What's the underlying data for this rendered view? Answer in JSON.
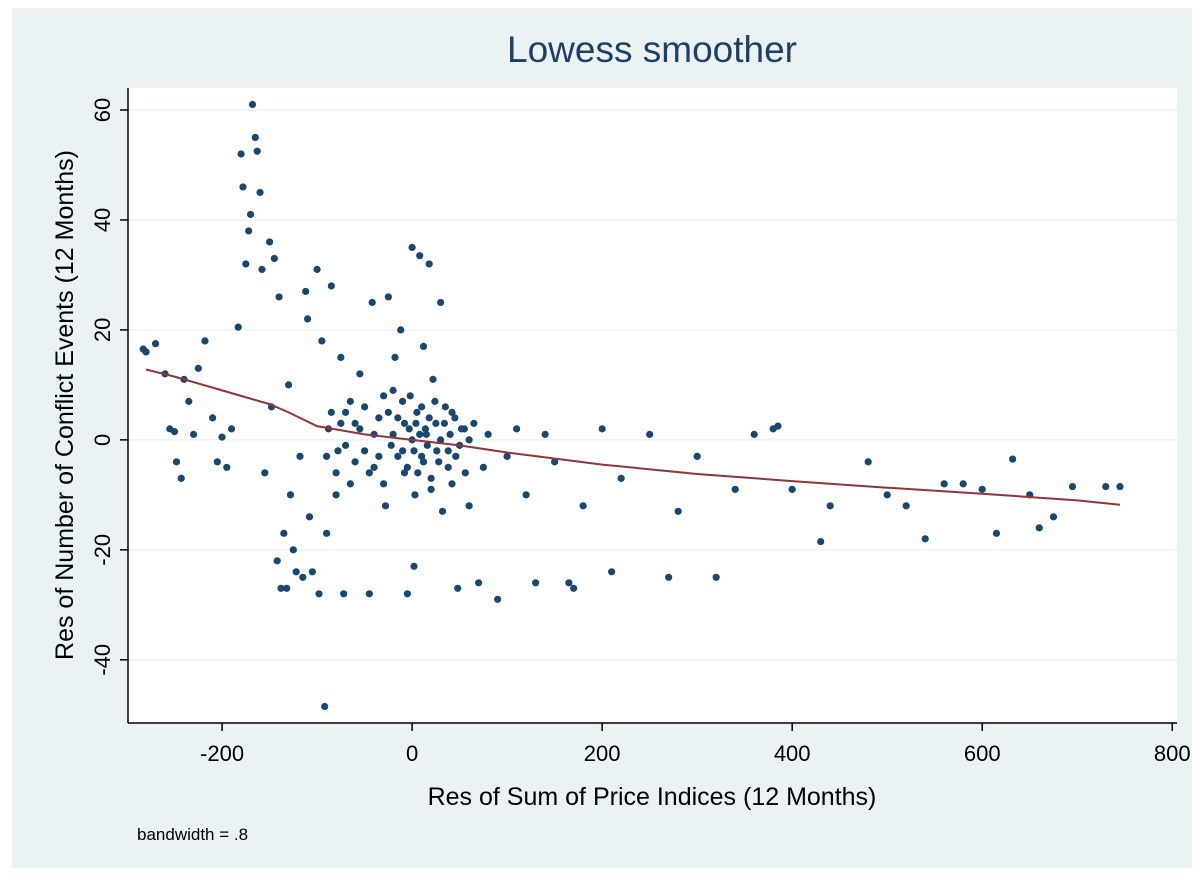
{
  "chart_data": {
    "type": "scatter",
    "title": "Lowess smoother",
    "x_label": "Res of Sum of Price Indices (12 Months)",
    "y_label": "Res of Number of Conflict Events (12 Months)",
    "note": "bandwidth = .8",
    "xlim": [
      -299,
      805
    ],
    "ylim": [
      -51.5,
      64
    ],
    "xticks": [
      -200,
      0,
      200,
      400,
      600,
      800
    ],
    "yticks": [
      -40,
      -20,
      0,
      20,
      40,
      60
    ],
    "grid": true,
    "series": [
      {
        "color": "#1a476f",
        "kind": "points",
        "x": [
          -283,
          -280,
          -270,
          -260,
          -255,
          -250,
          -248,
          -243,
          -240,
          -235,
          -230,
          -225,
          -218,
          -210,
          -205,
          -200,
          -195,
          -190,
          -183,
          -180,
          -178,
          -175,
          -172,
          -170,
          -168,
          -165,
          -163,
          -160,
          -158,
          -155,
          -150,
          -148,
          -145,
          -142,
          -140,
          -138,
          -135,
          -132,
          -130,
          -128,
          -125,
          -122,
          -118,
          -115,
          -112,
          -110,
          -108,
          -105,
          -100,
          -98,
          -95,
          -92,
          -90,
          -88,
          -85,
          -80,
          -78,
          -75,
          -72,
          -70,
          -65,
          -60,
          -55,
          -50,
          -45,
          -42,
          -40,
          -35,
          -30,
          -28,
          -25,
          -20,
          -18,
          -15,
          -12,
          -10,
          -8,
          -5,
          -3,
          0,
          2,
          3,
          5,
          8,
          10,
          12,
          15,
          18,
          20,
          22,
          25,
          28,
          30,
          32,
          35,
          38,
          40,
          42,
          45,
          48,
          50,
          55,
          60,
          65,
          70,
          75,
          80,
          90,
          100,
          110,
          120,
          130,
          140,
          150,
          165,
          170,
          180,
          200,
          210,
          220,
          250,
          270,
          280,
          300,
          320,
          340,
          360,
          380,
          385,
          400,
          430,
          440,
          480,
          500,
          520,
          540,
          560,
          580,
          600,
          615,
          632,
          650,
          660,
          675,
          695,
          730,
          745,
          -90,
          -85,
          -80,
          -75,
          -70,
          -65,
          -60,
          -55,
          -50,
          -45,
          -40,
          -35,
          -30,
          -25,
          -22,
          -20,
          -15,
          -10,
          -8,
          -5,
          -2,
          0,
          2,
          4,
          6,
          8,
          10,
          12,
          14,
          16,
          18,
          20,
          24,
          26,
          30,
          34,
          38,
          42,
          46,
          52,
          56,
          60
        ],
        "y": [
          16.5,
          16,
          17.5,
          12,
          2,
          1.5,
          -4,
          -7,
          11,
          7,
          1,
          13,
          18,
          4,
          -4,
          0.5,
          -5,
          2,
          20.5,
          52,
          46,
          32,
          38,
          41,
          61,
          55,
          52.5,
          45,
          31,
          -6,
          36,
          6,
          33,
          -22,
          26,
          -27,
          -17,
          -27,
          10,
          -10,
          -20,
          -24,
          -3,
          -25,
          27,
          22,
          -14,
          -24,
          31,
          -28,
          18,
          -48.5,
          -17,
          2,
          28,
          -10,
          -2,
          15,
          -28,
          5,
          -8,
          3,
          12,
          -2,
          -28,
          25,
          -5,
          4,
          8,
          -12,
          26,
          1,
          15,
          -3,
          20,
          7,
          -6,
          -28,
          2,
          35,
          -23,
          -10,
          5,
          33.5,
          -3,
          17,
          1,
          32,
          -7,
          11,
          3,
          -4,
          25,
          -13,
          6,
          -2,
          1,
          -8,
          4,
          -27,
          -1,
          2,
          -12,
          3,
          -26,
          -5,
          1,
          -29,
          -3,
          2,
          -10,
          -26,
          1,
          -4,
          -26,
          -27,
          -12,
          2,
          -24,
          -7,
          1,
          -25,
          -13,
          -3,
          -25,
          -9,
          1,
          2,
          2.5,
          -9,
          -18.5,
          -12,
          -4,
          -10,
          -12,
          -18,
          -8,
          -8,
          -9,
          -17,
          -3.5,
          -10,
          -16,
          -14,
          -8.5,
          -8.5,
          -8.5,
          -3,
          5,
          -6,
          3,
          -1,
          7,
          -4,
          2,
          6,
          -6,
          1,
          -3,
          -8,
          5,
          -1,
          9,
          4,
          -2,
          3,
          -5,
          8,
          0,
          -2,
          3,
          -6,
          1,
          6,
          -4,
          2,
          -1,
          4,
          -9,
          7,
          -2,
          0,
          3,
          -5,
          5,
          -3,
          2,
          -6,
          0
        ]
      },
      {
        "color": "#90353b",
        "kind": "line",
        "x": [
          -280,
          -250,
          -200,
          -150,
          -130,
          -100,
          -50,
          0,
          50,
          100,
          200,
          300,
          400,
          500,
          600,
          700,
          745
        ],
        "y": [
          12.8,
          11.5,
          9,
          6.5,
          5,
          2.5,
          1,
          0,
          -1,
          -2.3,
          -4.5,
          -6.2,
          -7.5,
          -8.7,
          -9.8,
          -11,
          -11.8
        ]
      }
    ]
  }
}
